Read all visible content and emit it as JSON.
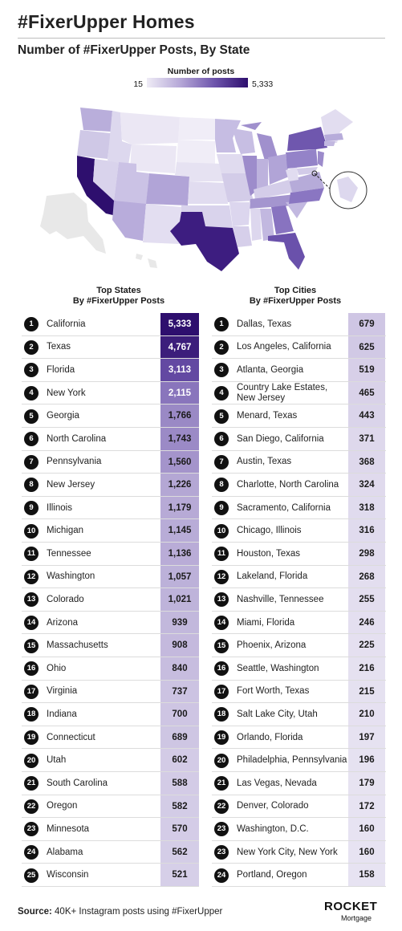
{
  "header": {
    "title": "#FixerUpper Homes",
    "subtitle": "Number of #FixerUpper Posts, By State"
  },
  "legend": {
    "title": "Number of posts",
    "min": "15",
    "max": "5,333"
  },
  "colors": {
    "low": "#efecf6",
    "mid": "#6e55ac",
    "high": "#2e0f6e",
    "no_data": "#e8e8e8"
  },
  "chart_data": [
    {
      "type": "table",
      "title": "Top States\nBy #FixerUpper Posts",
      "rows": [
        {
          "rank": "1",
          "name": "California",
          "value": "5,333",
          "v": 5333
        },
        {
          "rank": "2",
          "name": "Texas",
          "value": "4,767",
          "v": 4767
        },
        {
          "rank": "3",
          "name": "Florida",
          "value": "3,113",
          "v": 3113
        },
        {
          "rank": "4",
          "name": "New York",
          "value": "2,115",
          "v": 2115
        },
        {
          "rank": "5",
          "name": "Georgia",
          "value": "1,766",
          "v": 1766
        },
        {
          "rank": "6",
          "name": "North Carolina",
          "value": "1,743",
          "v": 1743
        },
        {
          "rank": "7",
          "name": "Pennsylvania",
          "value": "1,560",
          "v": 1560
        },
        {
          "rank": "8",
          "name": "New Jersey",
          "value": "1,226",
          "v": 1226
        },
        {
          "rank": "9",
          "name": "Illinois",
          "value": "1,179",
          "v": 1179
        },
        {
          "rank": "10",
          "name": "Michigan",
          "value": "1,145",
          "v": 1145
        },
        {
          "rank": "11",
          "name": "Tennessee",
          "value": "1,136",
          "v": 1136
        },
        {
          "rank": "12",
          "name": "Washington",
          "value": "1,057",
          "v": 1057
        },
        {
          "rank": "13",
          "name": "Colorado",
          "value": "1,021",
          "v": 1021
        },
        {
          "rank": "14",
          "name": "Arizona",
          "value": "939",
          "v": 939
        },
        {
          "rank": "15",
          "name": "Massachusetts",
          "value": "908",
          "v": 908
        },
        {
          "rank": "16",
          "name": "Ohio",
          "value": "840",
          "v": 840
        },
        {
          "rank": "17",
          "name": "Virginia",
          "value": "737",
          "v": 737
        },
        {
          "rank": "18",
          "name": "Indiana",
          "value": "700",
          "v": 700
        },
        {
          "rank": "19",
          "name": "Connecticut",
          "value": "689",
          "v": 689
        },
        {
          "rank": "20",
          "name": "Utah",
          "value": "602",
          "v": 602
        },
        {
          "rank": "21",
          "name": "South Carolina",
          "value": "588",
          "v": 588
        },
        {
          "rank": "22",
          "name": "Oregon",
          "value": "582",
          "v": 582
        },
        {
          "rank": "23",
          "name": "Minnesota",
          "value": "570",
          "v": 570
        },
        {
          "rank": "24",
          "name": "Alabama",
          "value": "562",
          "v": 562
        },
        {
          "rank": "25",
          "name": "Wisconsin",
          "value": "521",
          "v": 521
        }
      ]
    },
    {
      "type": "table",
      "title": "Top Cities\nBy #FixerUpper Posts",
      "rows": [
        {
          "rank": "1",
          "name": "Dallas, Texas",
          "value": "679",
          "v": 679
        },
        {
          "rank": "2",
          "name": "Los Angeles, California",
          "value": "625",
          "v": 625
        },
        {
          "rank": "3",
          "name": "Atlanta, Georgia",
          "value": "519",
          "v": 519
        },
        {
          "rank": "4",
          "name": "Country Lake Estates,\nNew Jersey",
          "value": "465",
          "v": 465
        },
        {
          "rank": "5",
          "name": "Menard, Texas",
          "value": "443",
          "v": 443
        },
        {
          "rank": "6",
          "name": "San Diego, California",
          "value": "371",
          "v": 371
        },
        {
          "rank": "7",
          "name": "Austin, Texas",
          "value": "368",
          "v": 368
        },
        {
          "rank": "8",
          "name": "Charlotte, North Carolina",
          "value": "324",
          "v": 324
        },
        {
          "rank": "9",
          "name": "Sacramento, California",
          "value": "318",
          "v": 318
        },
        {
          "rank": "10",
          "name": "Chicago, Illinois",
          "value": "316",
          "v": 316
        },
        {
          "rank": "11",
          "name": "Houston, Texas",
          "value": "298",
          "v": 298
        },
        {
          "rank": "12",
          "name": "Lakeland, Florida",
          "value": "268",
          "v": 268
        },
        {
          "rank": "13",
          "name": "Nashville, Tennessee",
          "value": "255",
          "v": 255
        },
        {
          "rank": "14",
          "name": "Miami, Florida",
          "value": "246",
          "v": 246
        },
        {
          "rank": "15",
          "name": "Phoenix, Arizona",
          "value": "225",
          "v": 225
        },
        {
          "rank": "16",
          "name": "Seattle, Washington",
          "value": "216",
          "v": 216
        },
        {
          "rank": "17",
          "name": "Fort Worth, Texas",
          "value": "215",
          "v": 215
        },
        {
          "rank": "18",
          "name": "Salt Lake City, Utah",
          "value": "210",
          "v": 210
        },
        {
          "rank": "19",
          "name": "Orlando, Florida",
          "value": "197",
          "v": 197
        },
        {
          "rank": "20",
          "name": "Philadelphia, Pennsylvania",
          "value": "196",
          "v": 196
        },
        {
          "rank": "21",
          "name": "Las Vegas, Nevada",
          "value": "179",
          "v": 179
        },
        {
          "rank": "22",
          "name": "Denver, Colorado",
          "value": "172",
          "v": 172
        },
        {
          "rank": "23",
          "name": "Washington, D.C.",
          "value": "160",
          "v": 160
        },
        {
          "rank": "23",
          "name": "New York City, New York",
          "value": "160",
          "v": 160
        },
        {
          "rank": "24",
          "name": "Portland, Oregon",
          "value": "158",
          "v": 158
        }
      ]
    }
  ],
  "footer": {
    "source_label": "Source:",
    "source_text": " 40K+ Instagram posts using #FixerUpper",
    "logo_word": "ROCKET",
    "logo_sub": "Mortgage"
  }
}
